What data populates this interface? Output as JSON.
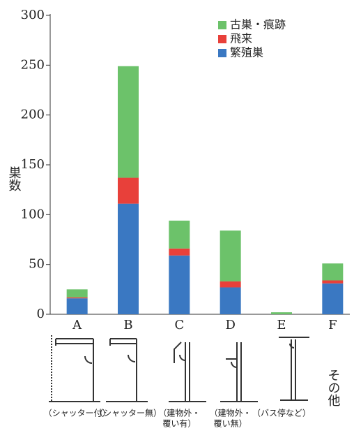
{
  "chart_data": {
    "type": "stacked_bar",
    "y_label": "巣数",
    "categories": [
      "A",
      "B",
      "C",
      "D",
      "E",
      "F"
    ],
    "series": [
      {
        "name": "繁殖巣",
        "color": "#3a78c2",
        "values": [
          16,
          111,
          59,
          27,
          0,
          31
        ]
      },
      {
        "name": "飛来",
        "color": "#e8403a",
        "values": [
          1,
          26,
          7,
          6,
          0,
          3
        ]
      },
      {
        "name": "古巣・痕跡",
        "color": "#6cc26a",
        "values": [
          8,
          112,
          28,
          51,
          2,
          17
        ]
      }
    ],
    "ylim": [
      0,
      300
    ],
    "yticks": [
      0,
      50,
      100,
      150,
      200,
      250,
      300
    ],
    "category_notes": [
      [
        "（シャッター付）"
      ],
      [
        "（シャッター無）"
      ],
      [
        "（建物外・",
        "覆い有）"
      ],
      [
        "（建物外・",
        "覆い無）"
      ],
      [
        "（バス停など）"
      ],
      []
    ],
    "side_note": "その他"
  }
}
